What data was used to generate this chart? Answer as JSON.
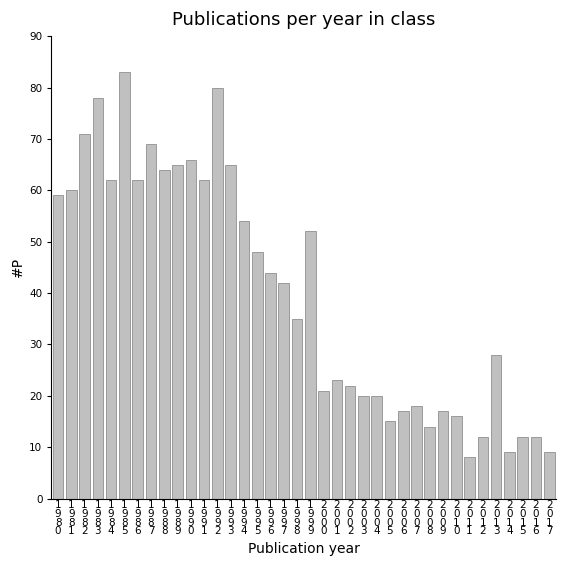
{
  "title": "Publications per year in class",
  "xlabel": "Publication year",
  "ylabel": "#P",
  "bar_color": "#c0c0c0",
  "bar_edgecolor": "#808080",
  "years": [
    "1980",
    "1981",
    "1982",
    "1983",
    "1984",
    "1985",
    "1986",
    "1987",
    "1988",
    "1989",
    "1990",
    "1991",
    "1992",
    "1993",
    "1994",
    "1995",
    "1996",
    "1997",
    "1998",
    "1999",
    "2000",
    "2001",
    "2002",
    "2003",
    "2004",
    "2005",
    "2006",
    "2007",
    "2008",
    "2009",
    "2010",
    "2011",
    "2012",
    "2013",
    "2014",
    "2015",
    "2016",
    "2017"
  ],
  "values": [
    59,
    60,
    71,
    78,
    62,
    83,
    62,
    69,
    64,
    65,
    66,
    62,
    80,
    65,
    54,
    48,
    44,
    42,
    35,
    52,
    21,
    23,
    22,
    20,
    20,
    15,
    17,
    18,
    14,
    17,
    16,
    8,
    12,
    28,
    9,
    12,
    12,
    9
  ],
  "ylim": [
    0,
    90
  ],
  "yticks": [
    0,
    10,
    20,
    30,
    40,
    50,
    60,
    70,
    80,
    90
  ],
  "background_color": "#ffffff",
  "title_fontsize": 13,
  "label_fontsize": 10,
  "tick_fontsize": 7.5
}
